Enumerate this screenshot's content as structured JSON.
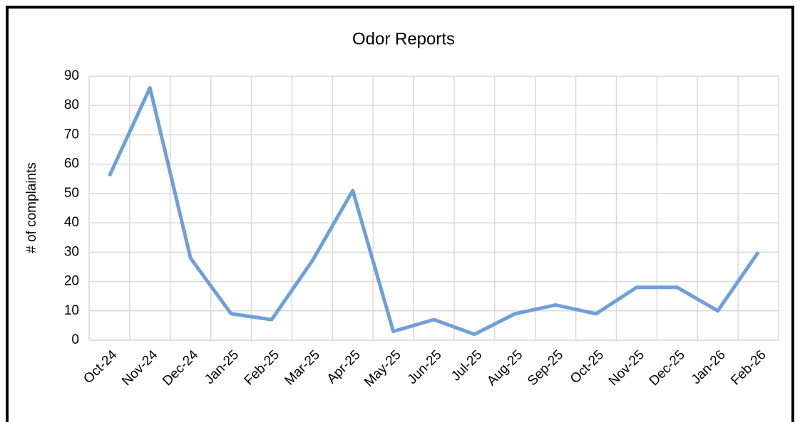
{
  "chart_data": {
    "type": "line",
    "title": "Odor Reports",
    "y_label": "# of complaints",
    "categories": [
      "Oct-24",
      "Nov-24",
      "Dec-24",
      "Jan-25",
      "Feb-25",
      "Mar-25",
      "Apr-25",
      "May-25",
      "Jun-25",
      "Jul-25",
      "Aug-25",
      "Sep-25",
      "Oct-25",
      "Nov-25",
      "Dec-25",
      "Jan-26",
      "Feb-26"
    ],
    "series": [
      {
        "name": "Odor Reports",
        "color": "#6f9fd8",
        "values": [
          56,
          86,
          28,
          9,
          7,
          27,
          51,
          3,
          7,
          2,
          9,
          12,
          9,
          18,
          18,
          10,
          30
        ]
      }
    ],
    "ylim": [
      0,
      90
    ],
    "yticks": [
      0,
      10,
      20,
      30,
      40,
      50,
      60,
      70,
      80,
      90
    ],
    "grid": true
  }
}
